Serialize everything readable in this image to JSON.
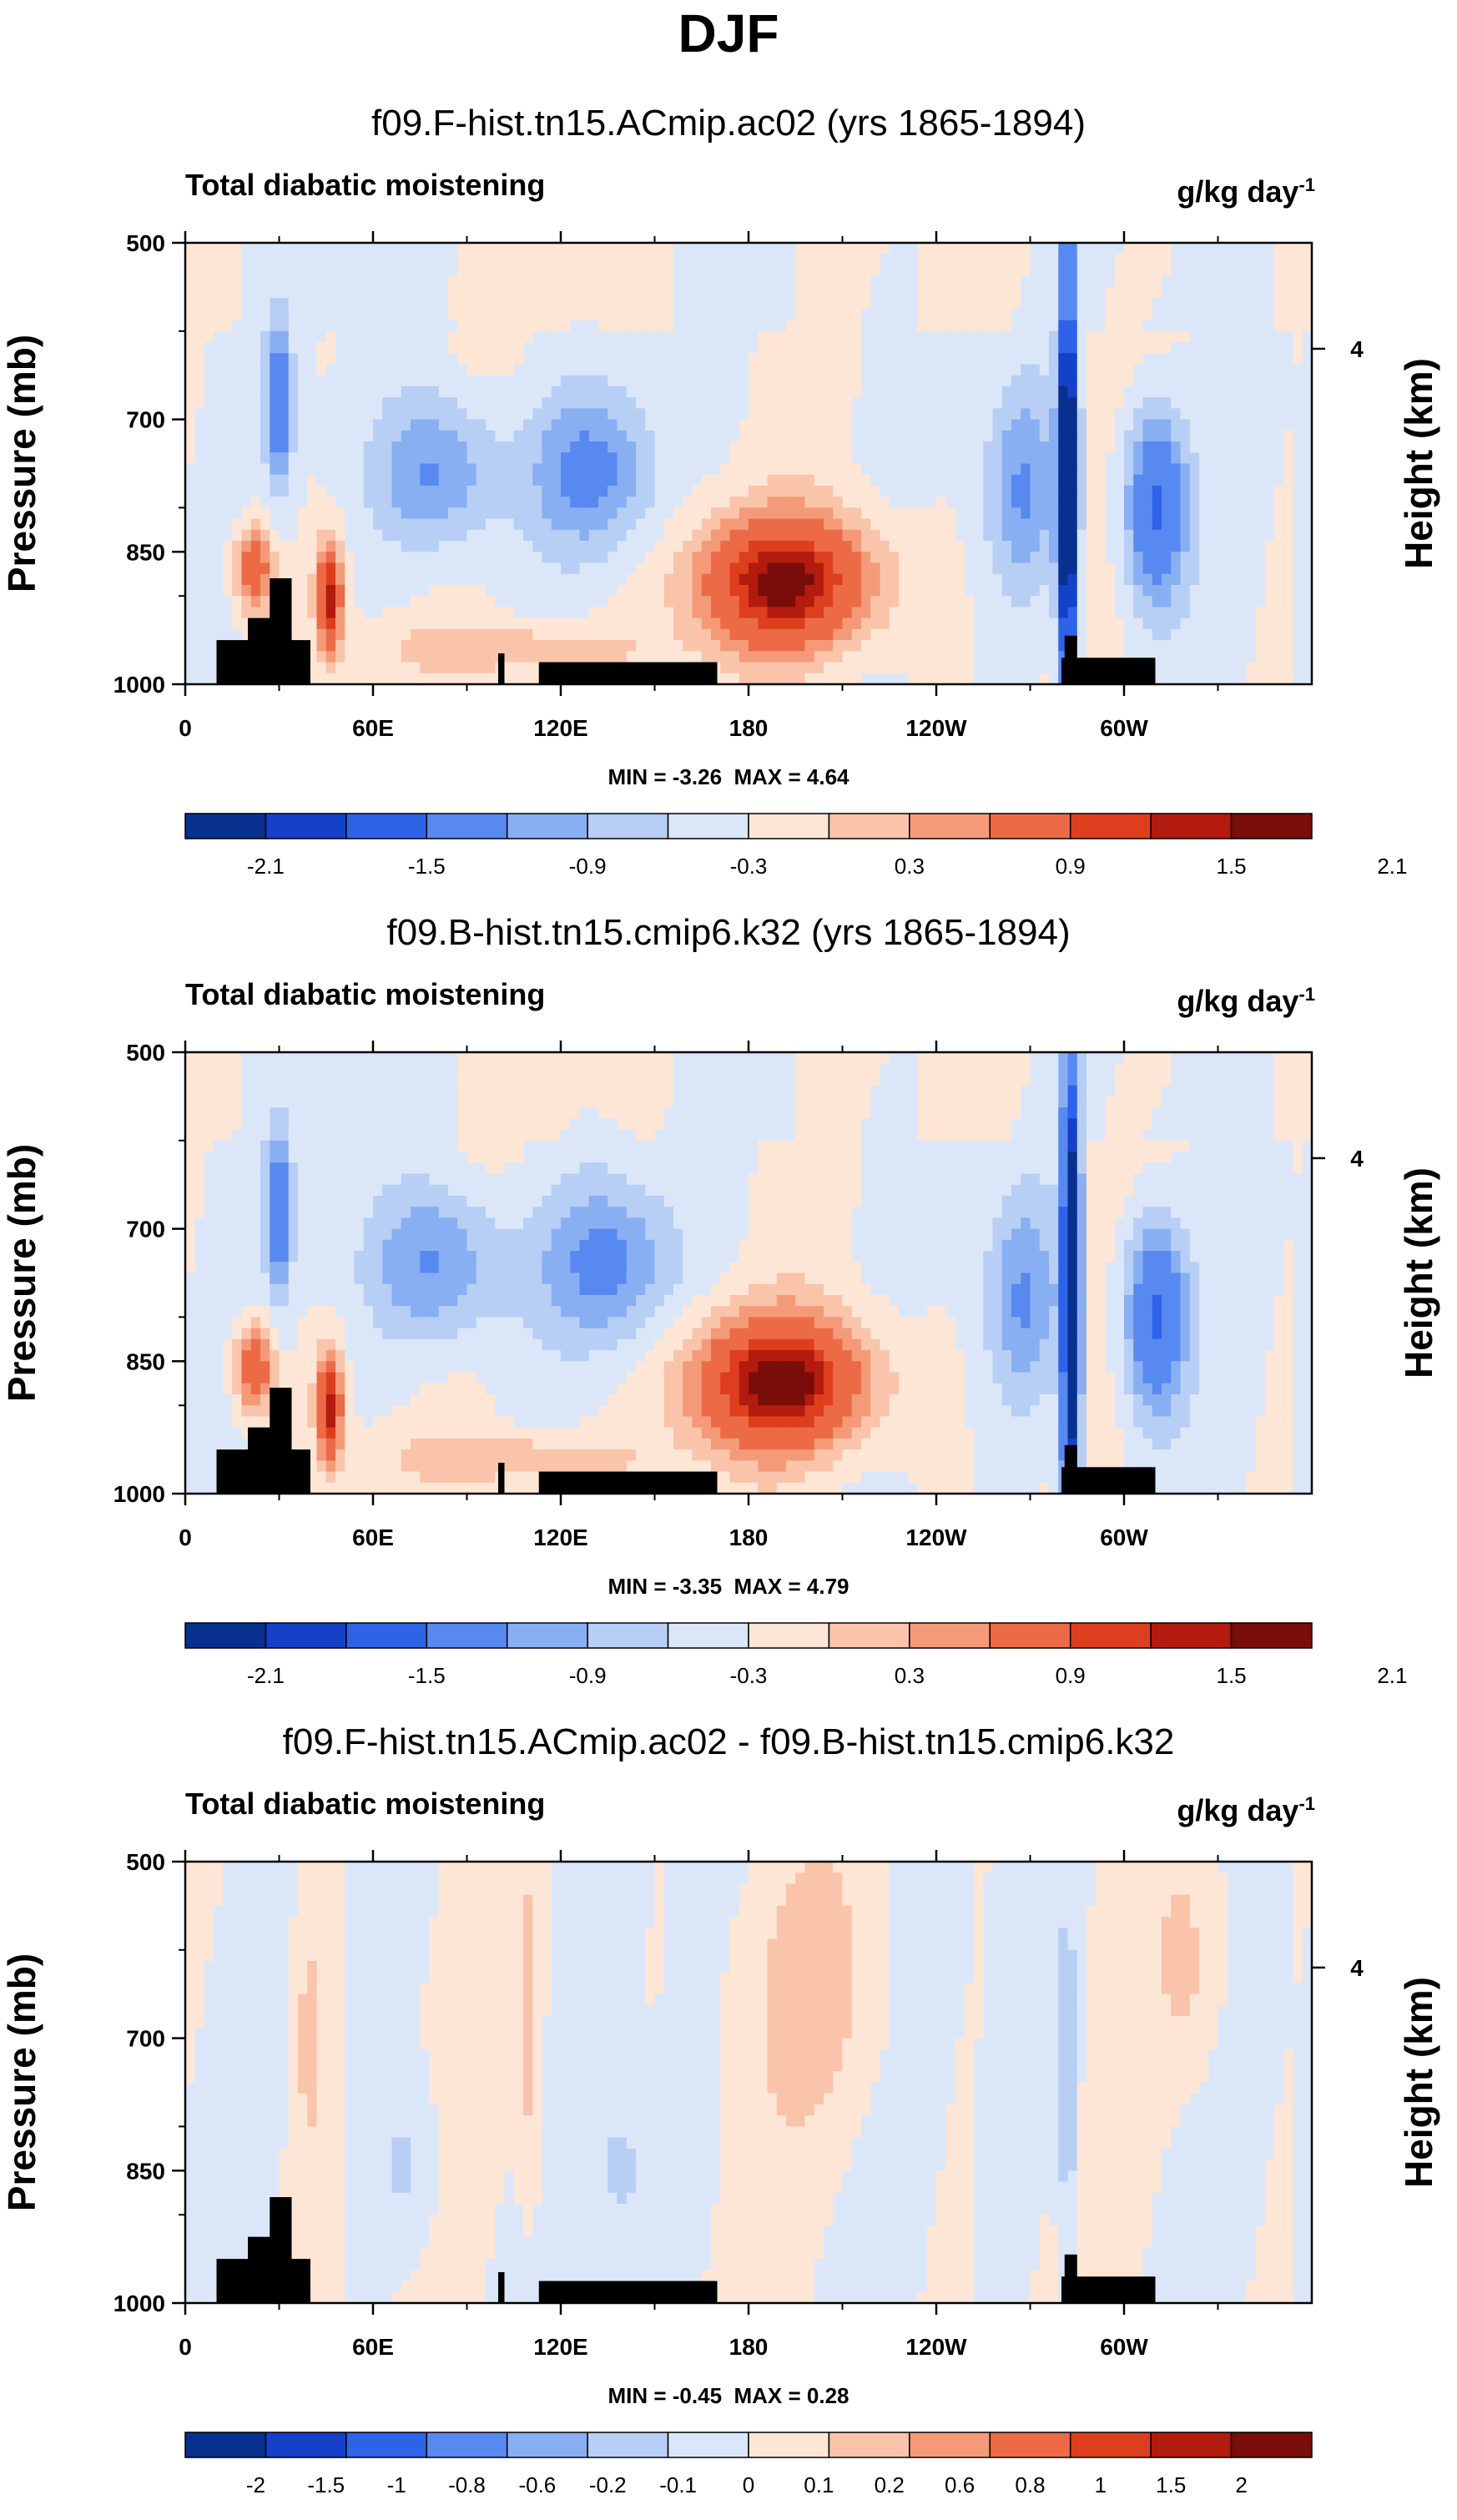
{
  "title": "DJF",
  "colors": {
    "ocean_levels_10": [
      "#08308f",
      "#1540c8",
      "#2e63e8",
      "#5889f0",
      "#89aff3",
      "#b7cef5",
      "#dbe7f8",
      "#fde6d6",
      "#f9c4aa",
      "#f49a78",
      "#ec6b46",
      "#dd3f1e",
      "#b31b0e",
      "#7a0d0a"
    ],
    "land": "#000000",
    "panel_border": "#000000"
  },
  "chart_data": [
    {
      "type": "heatmap",
      "title": "f09.F-hist.tn15.ACmip.ac02 (yrs 1865-1894)",
      "left_label": "Total diabatic moistening",
      "units_base": "g/kg day",
      "units_exp": "-1",
      "ylabel": "Pressure (mb)",
      "y2label": "Height (km)",
      "y_ticks": [
        "500",
        "700",
        "850",
        "1000"
      ],
      "y_tick_values": [
        500,
        700,
        850,
        1000
      ],
      "y2_ticks": [
        "4"
      ],
      "x_ticks": [
        "0",
        "60E",
        "120E",
        "180",
        "120W",
        "60W"
      ],
      "x_tick_values": [
        0,
        60,
        120,
        180,
        240,
        300
      ],
      "xlim": [
        0,
        360
      ],
      "ylim": [
        1000,
        500
      ],
      "min_text": "MIN = -3.26",
      "max_text": "MAX = 4.64",
      "min": -3.26,
      "max": 4.64,
      "colorbar_labels": [
        "-2.1",
        "-1.5",
        "-0.9",
        "-0.3",
        "0.3",
        "0.9",
        "1.5",
        "2.1"
      ],
      "colorbar_levels": [
        -2.4,
        -2.1,
        -1.8,
        -1.5,
        -1.2,
        -0.9,
        -0.6,
        -0.3,
        0,
        0.3,
        0.6,
        0.9,
        1.2,
        1.5,
        1.8,
        2.1,
        2.4
      ],
      "features": [
        {
          "lon": 192,
          "p": 885,
          "amp": 2.2,
          "wlon": 28,
          "wp": 75
        },
        {
          "lon": 22,
          "p": 870,
          "amp": 1.4,
          "wlon": 6,
          "wp": 50
        },
        {
          "lon": 46,
          "p": 900,
          "amp": 2.0,
          "wlon": 4,
          "wp": 60
        },
        {
          "lon": 30,
          "p": 680,
          "amp": -1.4,
          "wlon": 4,
          "wp": 90
        },
        {
          "lon": 80,
          "p": 760,
          "amp": -1.0,
          "wlon": 20,
          "wp": 90
        },
        {
          "lon": 130,
          "p": 760,
          "amp": -1.0,
          "wlon": 20,
          "wp": 90
        },
        {
          "lon": 282,
          "p": 780,
          "amp": -3.0,
          "wlon": 3,
          "wp": 280
        },
        {
          "lon": 310,
          "p": 800,
          "amp": -1.6,
          "wlon": 10,
          "wp": 110
        },
        {
          "lon": 268,
          "p": 780,
          "amp": -0.9,
          "wlon": 12,
          "wp": 120
        },
        {
          "lon": 105,
          "p": 960,
          "amp": 0.6,
          "wlon": 40,
          "wp": 30
        }
      ]
    },
    {
      "type": "heatmap",
      "title": "f09.B-hist.tn15.cmip6.k32 (yrs 1865-1894)",
      "left_label": "Total diabatic moistening",
      "units_base": "g/kg day",
      "units_exp": "-1",
      "ylabel": "Pressure (mb)",
      "y2label": "Height (km)",
      "y_ticks": [
        "500",
        "700",
        "850",
        "1000"
      ],
      "y_tick_values": [
        500,
        700,
        850,
        1000
      ],
      "y2_ticks": [
        "4"
      ],
      "x_ticks": [
        "0",
        "60E",
        "120E",
        "180",
        "120W",
        "60W"
      ],
      "x_tick_values": [
        0,
        60,
        120,
        180,
        240,
        300
      ],
      "xlim": [
        0,
        360
      ],
      "ylim": [
        1000,
        500
      ],
      "min_text": "MIN = -3.35",
      "max_text": "MAX = 4.79",
      "min": -3.35,
      "max": 4.79,
      "colorbar_labels": [
        "-2.1",
        "-1.5",
        "-0.9",
        "-0.3",
        "0.3",
        "0.9",
        "1.5",
        "2.1"
      ],
      "colorbar_levels": [
        -2.4,
        -2.1,
        -1.8,
        -1.5,
        -1.2,
        -0.9,
        -0.6,
        -0.3,
        0,
        0.3,
        0.6,
        0.9,
        1.2,
        1.5,
        1.8,
        2.1,
        2.4
      ],
      "features": [
        {
          "lon": 190,
          "p": 875,
          "amp": 2.3,
          "wlon": 28,
          "wp": 75
        },
        {
          "lon": 22,
          "p": 860,
          "amp": 1.4,
          "wlon": 6,
          "wp": 50
        },
        {
          "lon": 46,
          "p": 900,
          "amp": 2.0,
          "wlon": 4,
          "wp": 60
        },
        {
          "lon": 30,
          "p": 680,
          "amp": -1.4,
          "wlon": 4,
          "wp": 90
        },
        {
          "lon": 80,
          "p": 740,
          "amp": -1.0,
          "wlon": 22,
          "wp": 90
        },
        {
          "lon": 135,
          "p": 740,
          "amp": -1.0,
          "wlon": 22,
          "wp": 90
        },
        {
          "lon": 283,
          "p": 780,
          "amp": -3.0,
          "wlon": 3,
          "wp": 280
        },
        {
          "lon": 310,
          "p": 800,
          "amp": -1.6,
          "wlon": 10,
          "wp": 110
        },
        {
          "lon": 268,
          "p": 780,
          "amp": -0.9,
          "wlon": 12,
          "wp": 120
        },
        {
          "lon": 105,
          "p": 960,
          "amp": 0.6,
          "wlon": 40,
          "wp": 30
        }
      ]
    },
    {
      "type": "heatmap",
      "title": "f09.F-hist.tn15.ACmip.ac02 - f09.B-hist.tn15.cmip6.k32",
      "left_label": "Total diabatic moistening",
      "units_base": "g/kg day",
      "units_exp": "-1",
      "ylabel": "Pressure (mb)",
      "y2label": "Height (km)",
      "y_ticks": [
        "500",
        "700",
        "850",
        "1000"
      ],
      "y_tick_values": [
        500,
        700,
        850,
        1000
      ],
      "y2_ticks": [
        "4"
      ],
      "x_ticks": [
        "0",
        "60E",
        "120E",
        "180",
        "120W",
        "60W"
      ],
      "x_tick_values": [
        0,
        60,
        120,
        180,
        240,
        300
      ],
      "xlim": [
        0,
        360
      ],
      "ylim": [
        1000,
        500
      ],
      "min_text": "MIN = -0.45",
      "max_text": "MAX = 0.28",
      "min": -0.45,
      "max": 0.28,
      "colorbar_labels": [
        "-2",
        "-1.5",
        "-1",
        "-0.8",
        "-0.6",
        "-0.2",
        "-0.1",
        "0",
        "0.1",
        "0.2",
        "0.6",
        "0.8",
        "1",
        "1.5",
        "2"
      ],
      "colorbar_levels": [
        -3,
        -2,
        -1.5,
        -1,
        -0.8,
        -0.6,
        -0.2,
        -0.1,
        0,
        0.1,
        0.2,
        0.6,
        0.8,
        1,
        1.5,
        2,
        3
      ],
      "features": [
        {
          "lon": 40,
          "p": 700,
          "amp": 0.15,
          "wlon": 5,
          "wp": 150
        },
        {
          "lon": 110,
          "p": 700,
          "amp": 0.15,
          "wlon": 4,
          "wp": 200
        },
        {
          "lon": 200,
          "p": 650,
          "amp": 0.15,
          "wlon": 20,
          "wp": 150
        },
        {
          "lon": 70,
          "p": 850,
          "amp": -0.12,
          "wlon": 10,
          "wp": 100
        },
        {
          "lon": 140,
          "p": 850,
          "amp": -0.12,
          "wlon": 12,
          "wp": 100
        },
        {
          "lon": 282,
          "p": 750,
          "amp": -0.2,
          "wlon": 3,
          "wp": 200
        },
        {
          "lon": 320,
          "p": 620,
          "amp": 0.12,
          "wlon": 10,
          "wp": 120
        }
      ]
    }
  ],
  "land_profile": [
    {
      "lon0": 10,
      "lon1": 40,
      "p_top": 950
    },
    {
      "lon0": 20,
      "lon1": 34,
      "p_top": 925
    },
    {
      "lon0": 27,
      "lon1": 34,
      "p_top": 880
    },
    {
      "lon0": 100,
      "lon1": 102,
      "p_top": 965
    },
    {
      "lon0": 113,
      "lon1": 170,
      "p_top": 975
    },
    {
      "lon0": 280,
      "lon1": 310,
      "p_top": 970
    },
    {
      "lon0": 281,
      "lon1": 285,
      "p_top": 945
    }
  ]
}
